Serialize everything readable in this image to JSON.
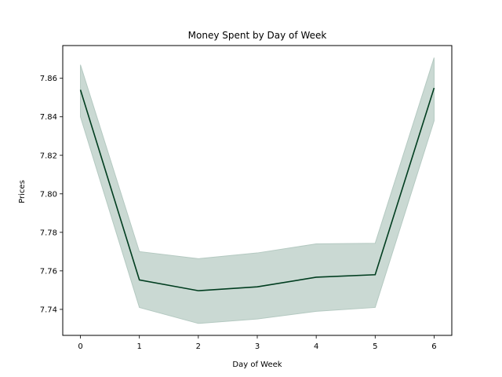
{
  "chart_data": {
    "type": "line",
    "title": "Money Spent by Day of Week",
    "xlabel": "Day of Week",
    "ylabel": "Prices",
    "x": [
      0,
      1,
      2,
      3,
      4,
      5,
      6
    ],
    "series": [
      {
        "values": [
          7.854,
          7.7553,
          7.7497,
          7.7517,
          7.7567,
          7.758,
          7.855
        ],
        "ci_upper": [
          7.867,
          7.77,
          7.7663,
          7.7693,
          7.774,
          7.7743,
          7.8707
        ],
        "ci_lower": [
          7.84,
          7.741,
          7.7327,
          7.735,
          7.739,
          7.741,
          7.838
        ],
        "line_color": "#003d1f",
        "band_color": "#b4c9c1"
      }
    ],
    "xlim": [
      -0.3,
      6.3
    ],
    "ylim": [
      7.7265,
      7.877
    ],
    "xticks": [
      "0",
      "1",
      "2",
      "3",
      "4",
      "5",
      "6"
    ],
    "yticks": [
      "7.74",
      "7.76",
      "7.78",
      "7.80",
      "7.82",
      "7.84",
      "7.86"
    ],
    "grid": false,
    "legend": "none"
  }
}
